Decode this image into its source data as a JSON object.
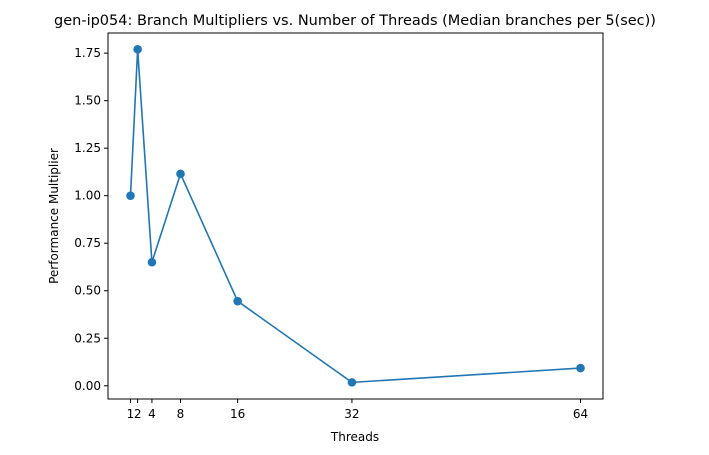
{
  "chart_data": {
    "type": "line",
    "title": "gen-ip054: Branch Multipliers vs. Number of Threads (Median branches per 5(sec))",
    "xlabel": "Threads",
    "ylabel": "Performance Multiplier",
    "x": [
      1,
      2,
      4,
      8,
      16,
      32,
      64
    ],
    "x_tick_labels": [
      "1",
      "2",
      "4",
      "8",
      "16",
      "32",
      "64"
    ],
    "xlim": [
      -2.15,
      67.15
    ],
    "ylim": [
      -0.0695,
      1.8559
    ],
    "y_ticks": [
      0.0,
      0.25,
      0.5,
      0.75,
      1.0,
      1.25,
      1.5,
      1.75
    ],
    "y_tick_labels": [
      "0.00",
      "0.25",
      "0.50",
      "0.75",
      "1.00",
      "1.25",
      "1.50",
      "1.75"
    ],
    "series": [
      {
        "values": [
          1.0,
          1.77,
          0.65,
          1.115,
          0.445,
          0.018,
          0.093
        ],
        "color": "#1f77b4",
        "marker": "circle"
      }
    ],
    "grid": false,
    "legend": "none"
  }
}
